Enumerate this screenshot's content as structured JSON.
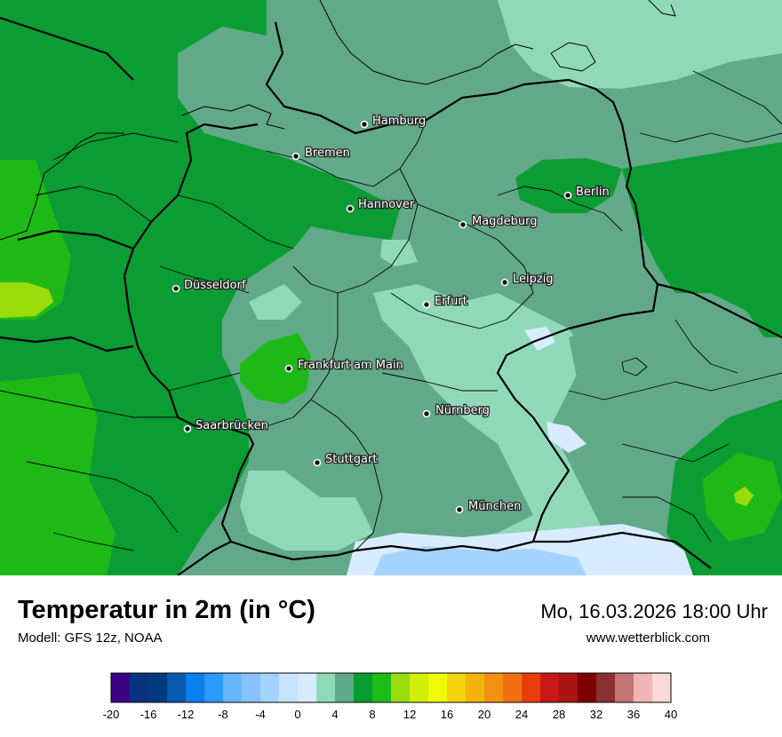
{
  "title": "Temperatur in 2m (in °C)",
  "model": "Modell: GFS 12z, NOAA",
  "datetime": "Mo, 16.03.2026 18:00 Uhr",
  "website": "www.wetterblick.com",
  "cities": [
    "Hamburg",
    "Bremen",
    "Hannover",
    "Berlin",
    "Magdeburg",
    "Düsseldorf",
    "Leipzig",
    "Erfurt",
    "Frankfurt am Main",
    "Nürnberg",
    "Saarbrücken",
    "Stuttgart",
    "München"
  ],
  "legend": {
    "colors": [
      "#3b0487",
      "#07327e",
      "#013a7f",
      "#045bb0",
      "#0880f0",
      "#2b99ff",
      "#67b5ff",
      "#88c2ff",
      "#a5d3ff",
      "#c6e3ff",
      "#d9ecff",
      "#8ed9b8",
      "#5fa98b",
      "#089d31",
      "#1ebc16",
      "#9adc0b",
      "#d2ee06",
      "#f0fa06",
      "#f3d30a",
      "#f3b40a",
      "#f29110",
      "#f27014",
      "#e93d0a",
      "#c81818",
      "#ac1313",
      "#7e0000",
      "#8b3030",
      "#c47575",
      "#f2b3b3",
      "#fcd9d9"
    ],
    "tick_labels": [
      "-20",
      "-16",
      "-12",
      "-8",
      "-4",
      "0",
      "4",
      "8",
      "12",
      "16",
      "20",
      "24",
      "28",
      "32",
      "36",
      "40"
    ]
  }
}
